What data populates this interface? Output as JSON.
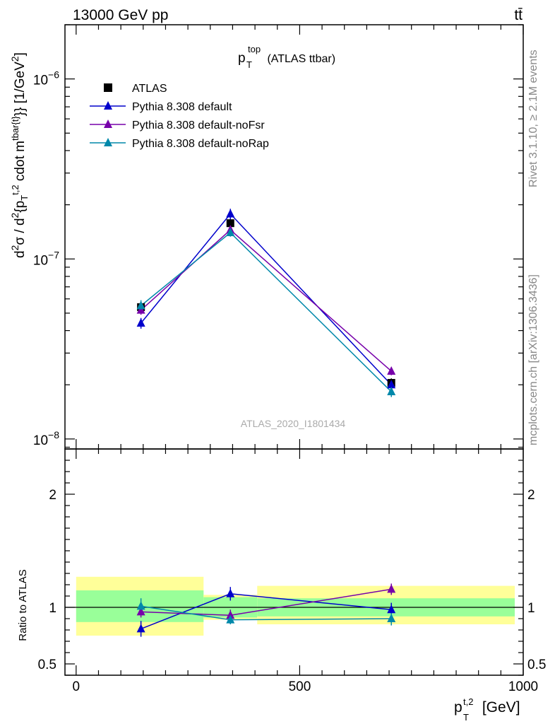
{
  "header": {
    "energy_label": "13000 GeV pp",
    "process_label": "tt̄"
  },
  "side_text": {
    "rivet": "Rivet 3.1.10, ≥ 2.1M events",
    "source": "mcplots.cern.ch [arXiv:1306.3436]"
  },
  "chart_data": {
    "type": "line",
    "title": {
      "main": "p",
      "sup": "top",
      "sub": "T",
      "suffix": " (ATLAS ttbar)"
    },
    "analysis_label": "ATLAS_2020_I1801434",
    "x": [
      145,
      345,
      705
    ],
    "x_bins": [
      [
        0,
        285
      ],
      [
        285,
        405
      ],
      [
        405,
        1000
      ]
    ],
    "xlim": [
      -25,
      1000
    ],
    "xticks": [
      "0",
      "500",
      "1000"
    ],
    "xlabel": {
      "main": "p",
      "sup": "t,2",
      "sub": "T",
      "suffix": " [GeV]"
    },
    "upper": {
      "yscale": "log",
      "ylim": [
        8.8e-09,
        2e-06
      ],
      "yticks": [
        {
          "mant": "10",
          "exp": "−8"
        },
        {
          "mant": "10",
          "exp": "−7"
        },
        {
          "mant": "10",
          "exp": "−6"
        }
      ],
      "ylabel": "d²σ / d²{p_T^{t,2} cdot m^{tbar{t}}} [1/GeV²]",
      "data": {
        "name": "ATLAS",
        "y": [
          5.4e-08,
          1.58e-07,
          2.05e-08
        ],
        "err": [
          3e-09,
          8e-09,
          1.2e-09
        ],
        "color": "#000000",
        "marker": "square"
      },
      "series": [
        {
          "name": "Pythia 8.308 default",
          "y": [
            4.4e-08,
            1.78e-07,
            2e-08
          ],
          "err": [
            3e-09,
            1.2e-08,
            1.2e-09
          ],
          "color": "#0000cc",
          "marker": "triangle"
        },
        {
          "name": "Pythia 8.308 default-noFsr",
          "y": [
            5.2e-08,
            1.45e-07,
            2.38e-08
          ],
          "err": [
            3e-09,
            8e-09,
            1.2e-09
          ],
          "color": "#7700aa",
          "marker": "triangle"
        },
        {
          "name": "Pythia 8.308 default-noRap",
          "y": [
            5.5e-08,
            1.4e-07,
            1.83e-08
          ],
          "err": [
            4e-09,
            7e-09,
            1.2e-09
          ],
          "color": "#0088aa",
          "marker": "triangle"
        }
      ]
    },
    "ratio": {
      "ylim": [
        0.4,
        2.4
      ],
      "yticks": [
        "0.5",
        "1",
        "2"
      ],
      "ylabel": "Ratio to ATLAS",
      "stat_band": [
        [
          0.87,
          1.15
        ],
        [
          0.91,
          1.09
        ],
        [
          0.92,
          1.08
        ]
      ],
      "total_band": [
        [
          0.75,
          1.27
        ],
        [
          0.89,
          1.11
        ],
        [
          0.85,
          1.19
        ]
      ],
      "band_colors": {
        "stat": "#99ff99",
        "total": "#ffff99"
      },
      "series": [
        {
          "name": "Pythia 8.308 default",
          "y": [
            0.81,
            1.12,
            0.98
          ],
          "err": [
            0.07,
            0.06,
            0.06
          ]
        },
        {
          "name": "Pythia 8.308 default-noFsr",
          "y": [
            0.96,
            0.93,
            1.16
          ],
          "err": [
            0.05,
            0.05,
            0.05
          ]
        },
        {
          "name": "Pythia 8.308 default-noRap",
          "y": [
            1.01,
            0.89,
            0.9
          ],
          "err": [
            0.07,
            0.04,
            0.06
          ]
        }
      ]
    }
  }
}
